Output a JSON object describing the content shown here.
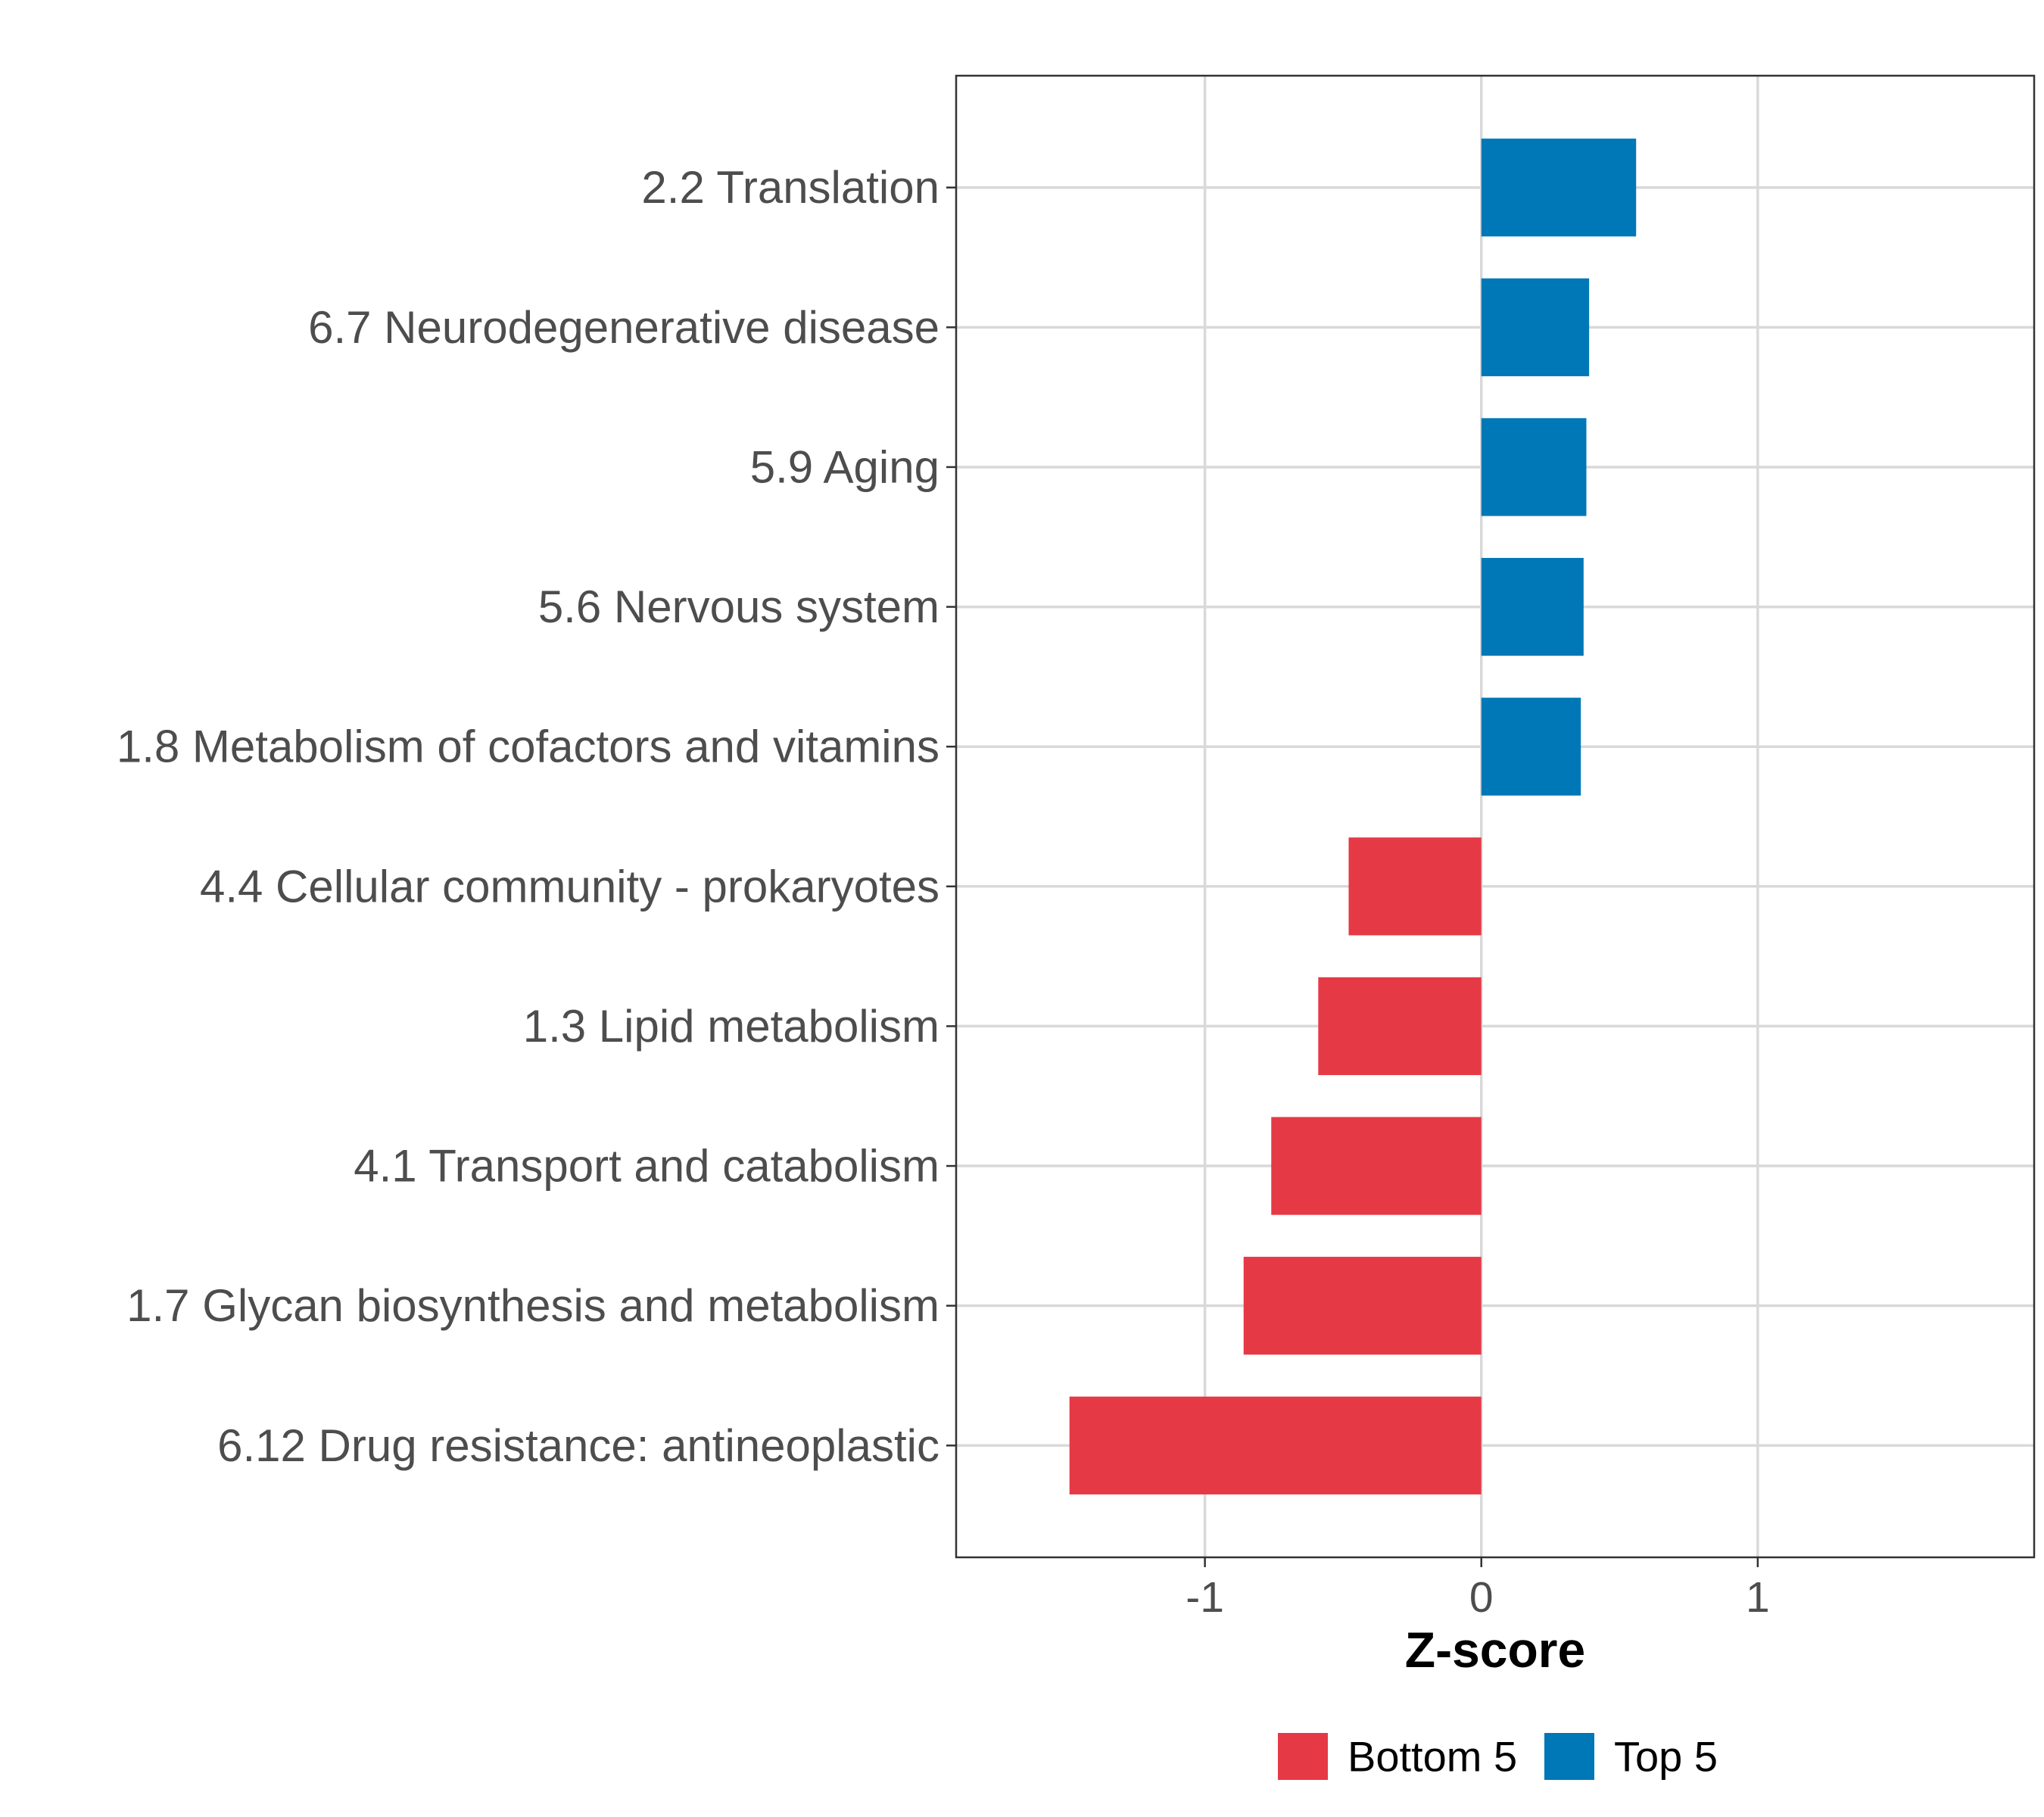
{
  "chart_data": {
    "type": "bar",
    "orientation": "horizontal",
    "title": "",
    "xlabel": "Z-score",
    "ylabel": "",
    "xlim": [
      -1.9,
      2.0
    ],
    "xticks": [
      -1,
      0,
      1
    ],
    "xtick_labels": [
      "-1",
      "0",
      "1"
    ],
    "grid": true,
    "legend_position": "bottom",
    "categories": [
      "2.2 Translation",
      "6.7 Neurodegenerative disease",
      "5.9 Aging",
      "5.6 Nervous system",
      "1.8 Metabolism of cofactors and vitamins",
      "4.4 Cellular community - prokaryotes",
      "1.3 Lipid metabolism",
      "4.1 Transport and catabolism",
      "1.7 Glycan biosynthesis and metabolism",
      "6.12 Drug resistance: antineoplastic"
    ],
    "values": [
      0.56,
      0.39,
      0.38,
      0.37,
      0.36,
      -0.48,
      -0.59,
      -0.76,
      -0.86,
      -1.49
    ],
    "groups": [
      "Top 5",
      "Top 5",
      "Top 5",
      "Top 5",
      "Top 5",
      "Bottom 5",
      "Bottom 5",
      "Bottom 5",
      "Bottom 5",
      "Bottom 5"
    ],
    "legend": [
      {
        "name": "Bottom 5",
        "color": "#E63946"
      },
      {
        "name": "Top 5",
        "color": "#0077B6"
      }
    ]
  }
}
